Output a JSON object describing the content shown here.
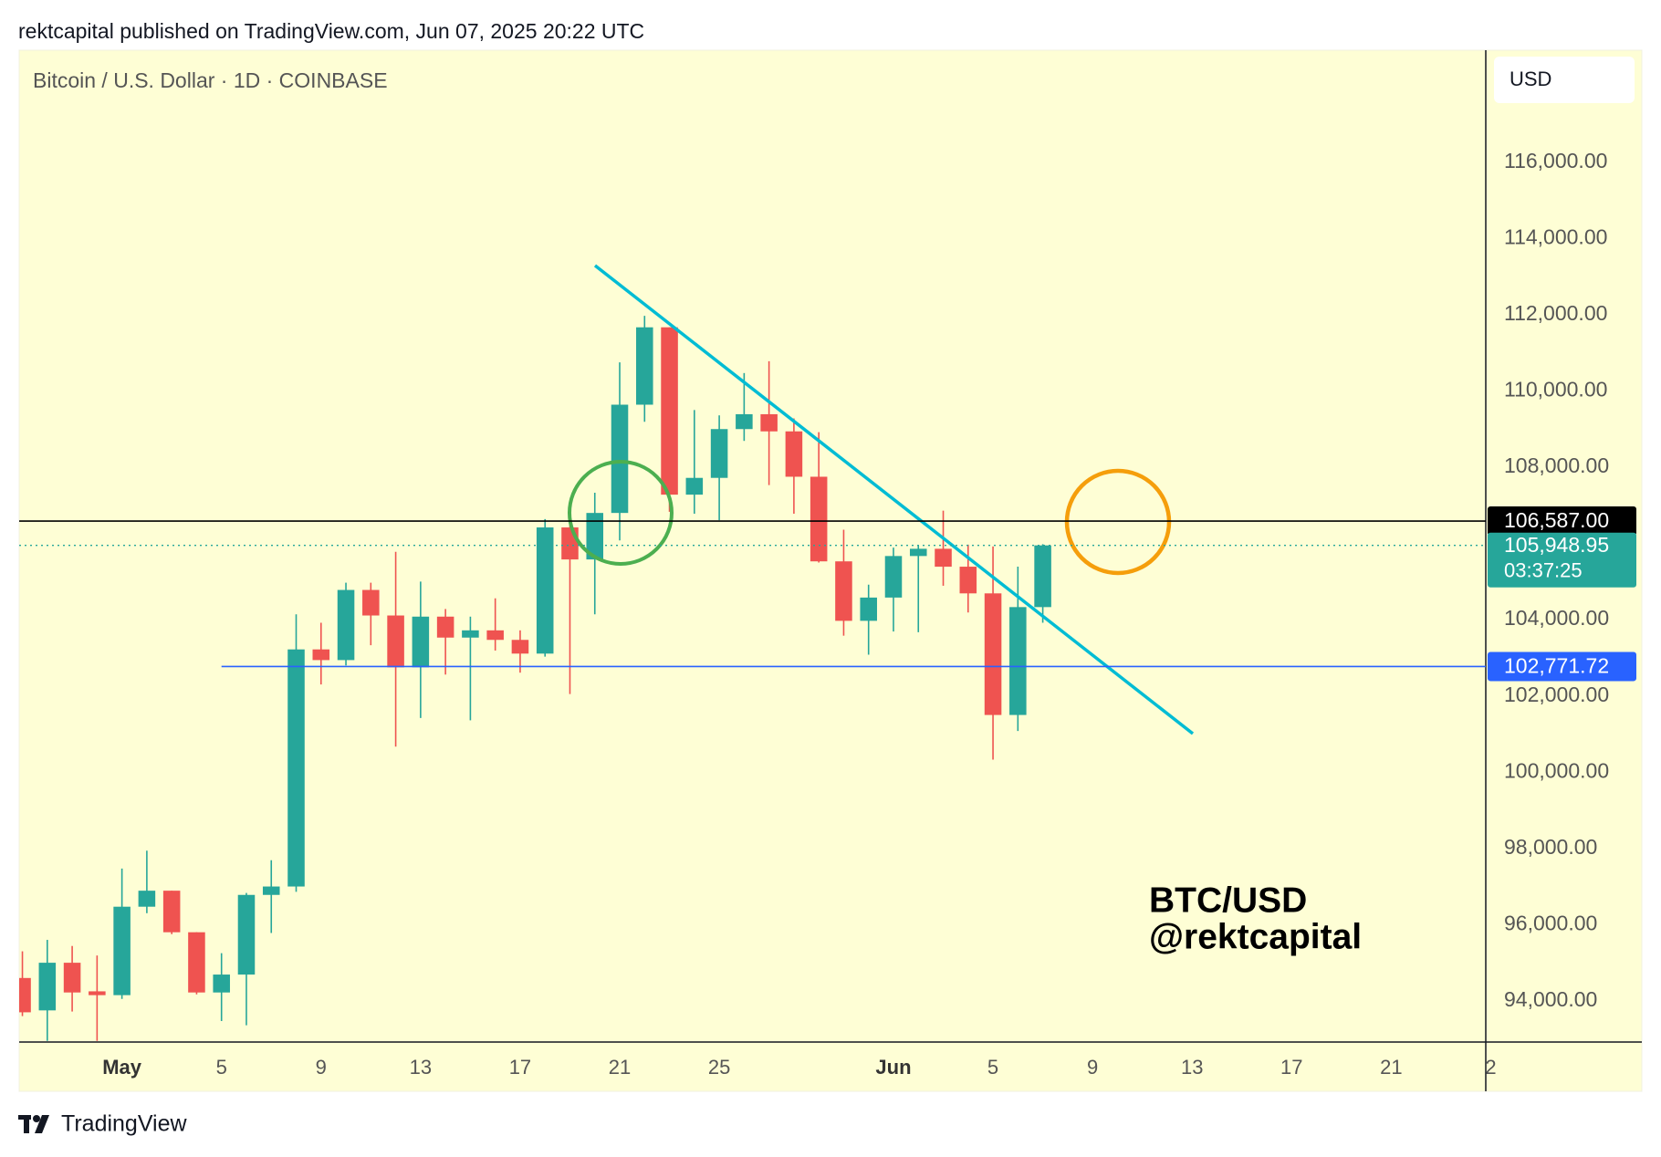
{
  "header": "rektcapital published on TradingView.com, Jun 07, 2025 20:22 UTC",
  "footer": "TradingView",
  "chart_data": {
    "type": "candlestick",
    "title": "Bitcoin / U.S. Dollar · 1D · COINBASE",
    "currency": "USD",
    "annotation": [
      "BTC/USD",
      "@rektcapital"
    ],
    "up_color": "#26a69a",
    "down_color": "#ef5350",
    "x": [
      -4,
      -3,
      -2,
      -1,
      0,
      1,
      2,
      3,
      4,
      5,
      6,
      7,
      8,
      9,
      10,
      11,
      12,
      13,
      14,
      15,
      16,
      17,
      18,
      19,
      20,
      21,
      22,
      23,
      24,
      25,
      26,
      27,
      28,
      29,
      30,
      31,
      32,
      33,
      34,
      35,
      36,
      37
    ],
    "open": [
      94600,
      93750,
      95000,
      94250,
      94150,
      96470,
      96890,
      95800,
      94220,
      94690,
      96780,
      97000,
      103220,
      102940,
      104780,
      104110,
      102750,
      104080,
      103530,
      103720,
      103470,
      103110,
      106420,
      105580,
      106800,
      109640,
      111670,
      107280,
      107720,
      109000,
      109390,
      108940,
      107750,
      105530,
      103970,
      104580,
      105670,
      105860,
      105390,
      104690,
      101500,
      104330
    ],
    "high": [
      95300,
      95600,
      95440,
      95190,
      97470,
      97940,
      96890,
      95800,
      95250,
      96830,
      97690,
      104140,
      103920,
      104970,
      104970,
      105780,
      105000,
      104280,
      104080,
      104560,
      103720,
      106640,
      106640,
      107330,
      110750,
      111970,
      111670,
      109500,
      109360,
      110470,
      110780,
      109280,
      108920,
      106360,
      104920,
      105890,
      105940,
      106860,
      105970,
      105920,
      105390,
      105980
    ],
    "low": [
      93600,
      92950,
      93720,
      92950,
      94050,
      96300,
      95750,
      94170,
      93470,
      93360,
      95780,
      96860,
      102300,
      102800,
      103330,
      100670,
      101420,
      102560,
      101360,
      103190,
      102610,
      103030,
      102050,
      104140,
      106080,
      109190,
      106830,
      106780,
      106610,
      108690,
      107530,
      106780,
      105500,
      103580,
      103080,
      103690,
      103670,
      104890,
      104190,
      100330,
      101080,
      103920
    ],
    "close": [
      93700,
      95000,
      94220,
      94150,
      96470,
      96890,
      95800,
      94220,
      94690,
      96780,
      97000,
      103220,
      102940,
      104780,
      104110,
      102750,
      104080,
      103530,
      103720,
      103470,
      103110,
      106420,
      105580,
      106800,
      109640,
      111670,
      107280,
      107720,
      109000,
      109390,
      108940,
      107750,
      105530,
      103970,
      104580,
      105670,
      105860,
      105390,
      104690,
      101500,
      104330,
      105948.95
    ],
    "xlim": [
      -4.13,
      54.8
    ],
    "ylim": [
      92920,
      118940
    ],
    "xticks": [
      {
        "value": 0,
        "label": "May"
      },
      {
        "value": 4,
        "label": "5"
      },
      {
        "value": 8,
        "label": "9"
      },
      {
        "value": 12,
        "label": "13"
      },
      {
        "value": 16,
        "label": "17"
      },
      {
        "value": 20,
        "label": "21"
      },
      {
        "value": 24,
        "label": "25"
      },
      {
        "value": 31,
        "label": "Jun"
      },
      {
        "value": 35,
        "label": "5"
      },
      {
        "value": 39,
        "label": "9"
      },
      {
        "value": 43,
        "label": "13"
      },
      {
        "value": 47,
        "label": "17"
      },
      {
        "value": 51,
        "label": "21"
      },
      {
        "value": 55,
        "label": "2"
      }
    ],
    "yticks": [
      {
        "value": 94000,
        "label": "94,000.00"
      },
      {
        "value": 96000,
        "label": "96,000.00"
      },
      {
        "value": 98000,
        "label": "98,000.00"
      },
      {
        "value": 100000,
        "label": "100,000.00"
      },
      {
        "value": 102000,
        "label": "102,000.00"
      },
      {
        "value": 104000,
        "label": "104,000.00"
      },
      {
        "value": 106000,
        "label": "106,000.00"
      },
      {
        "value": 108000,
        "label": "108,000.00"
      },
      {
        "value": 110000,
        "label": "110,000.00"
      },
      {
        "value": 112000,
        "label": "112,000.00"
      },
      {
        "value": 114000,
        "label": "114,000.00"
      },
      {
        "value": 116000,
        "label": "116,000.00"
      }
    ],
    "level_line": {
      "value": 106587,
      "label": "106,587.00",
      "color": "#000000"
    },
    "support_line": {
      "value": 102771.72,
      "label": "102,771.72",
      "color": "#2962ff",
      "x_start": 4
    },
    "last_price": {
      "value": 105948.95,
      "label": "105,948.95",
      "countdown": "03:37:25",
      "color": "#26a69a"
    }
  }
}
